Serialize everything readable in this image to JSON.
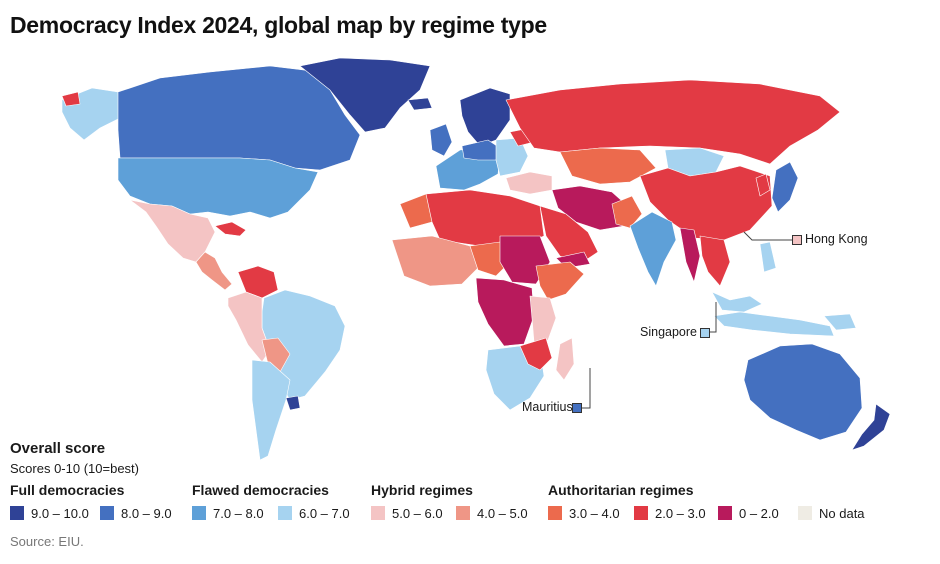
{
  "title": "Democracy Index 2024, global map by regime type",
  "colors": {
    "full_9_10": "#2f4296",
    "full_8_9": "#4470c0",
    "flawed_7_8": "#5ea0d8",
    "flawed_6_7": "#a6d3f0",
    "hybrid_5_6": "#f4c4c4",
    "hybrid_4_5": "#ef9686",
    "auth_3_4": "#ec6a4d",
    "auth_2_3": "#e23a44",
    "auth_0_2": "#b81a5c",
    "no_data": "#efece4"
  },
  "callouts": {
    "hong_kong": "Hong Kong",
    "singapore": "Singapore",
    "mauritius": "Mauritius"
  },
  "legend": {
    "title": "Overall score",
    "subtitle": "Scores 0-10 (10=best)",
    "groups": {
      "full": "Full democracies",
      "flawed": "Flawed democracies",
      "hybrid": "Hybrid regimes",
      "authoritarian": "Authoritarian regimes"
    },
    "items": [
      "9.0 – 10.0",
      "8.0 – 9.0",
      "7.0 – 8.0",
      "6.0 – 7.0",
      "5.0 – 6.0",
      "4.0 – 5.0",
      "3.0 – 4.0",
      "2.0 – 3.0",
      "0 – 2.0",
      "No data"
    ]
  },
  "source": "Source: EIU."
}
